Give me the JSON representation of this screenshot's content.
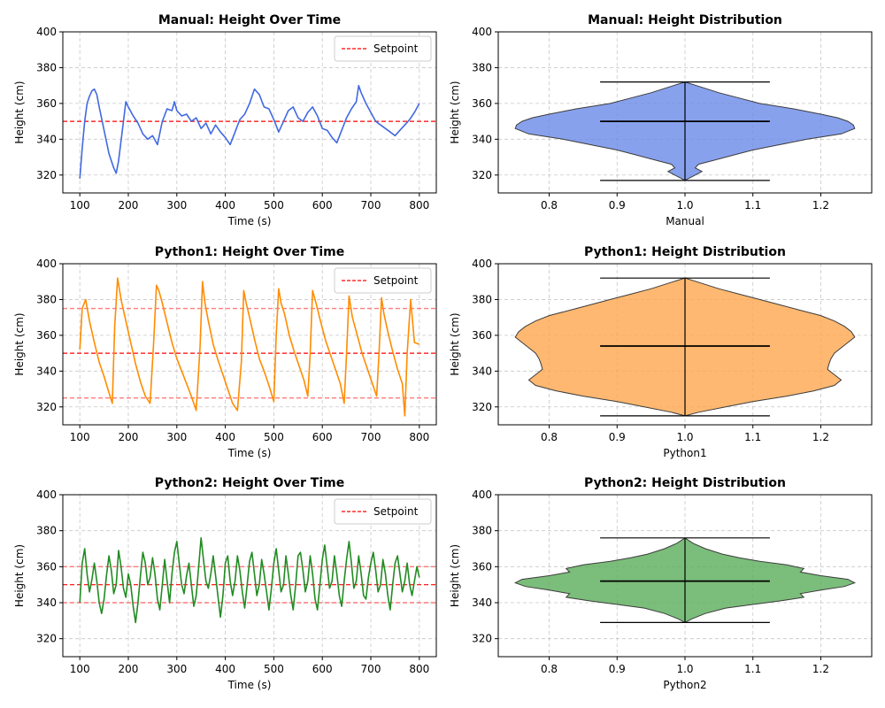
{
  "chart_data": [
    {
      "type": "line",
      "title": "Manual: Height Over Time",
      "xlabel": "Time (s)",
      "ylabel": "Height (cm)",
      "xlim": [
        65,
        835
      ],
      "ylim": [
        310,
        400
      ],
      "xticks": [
        100,
        200,
        300,
        400,
        500,
        600,
        700,
        800
      ],
      "yticks": [
        320,
        340,
        360,
        380,
        400
      ],
      "grid": true,
      "legend": {
        "position": "top-right",
        "entries": [
          "Setpoint"
        ]
      },
      "series": [
        {
          "color": "#4169e1",
          "x": [
            100,
            105,
            110,
            115,
            120,
            125,
            130,
            135,
            140,
            150,
            160,
            170,
            175,
            180,
            190,
            195,
            200,
            210,
            220,
            230,
            240,
            250,
            260,
            270,
            280,
            290,
            295,
            300,
            310,
            320,
            330,
            340,
            350,
            360,
            370,
            380,
            390,
            400,
            410,
            420,
            430,
            440,
            450,
            460,
            470,
            480,
            490,
            500,
            510,
            520,
            530,
            540,
            550,
            560,
            570,
            580,
            590,
            600,
            610,
            620,
            630,
            640,
            650,
            660,
            670,
            675,
            680,
            690,
            700,
            710,
            720,
            730,
            740,
            750,
            760,
            770,
            780,
            790,
            800
          ],
          "y": [
            318,
            335,
            350,
            360,
            364,
            367,
            368,
            365,
            358,
            345,
            332,
            324,
            321,
            328,
            350,
            361,
            358,
            353,
            349,
            343,
            340,
            342,
            337,
            350,
            357,
            356,
            361,
            356,
            353,
            354,
            350,
            352,
            346,
            349,
            343,
            348,
            344,
            341,
            337,
            344,
            351,
            354,
            360,
            368,
            365,
            358,
            357,
            351,
            344,
            350,
            356,
            358,
            352,
            350,
            355,
            358,
            353,
            346,
            345,
            341,
            338,
            345,
            352,
            357,
            361,
            370,
            366,
            360,
            355,
            350,
            348,
            346,
            344,
            342,
            345,
            348,
            351,
            355,
            360
          ]
        }
      ],
      "hlines": [
        {
          "y": 350,
          "color": "#ff0000",
          "style": "dashed",
          "label": "Setpoint"
        }
      ]
    },
    {
      "type": "violin",
      "title": "Manual: Height Distribution",
      "xlabel": "Manual",
      "ylabel": "Height (cm)",
      "xlim": [
        0.725,
        1.275
      ],
      "ylim": [
        310,
        400
      ],
      "xticks": [
        0.8,
        0.9,
        1.0,
        1.1,
        1.2
      ],
      "yticks": [
        320,
        340,
        360,
        380,
        400
      ],
      "grid": true,
      "position": 1.0,
      "color": "#6a89e8",
      "min": 317,
      "max": 372,
      "median": 350,
      "profile": [
        [
          317,
          0.0
        ],
        [
          320,
          0.015
        ],
        [
          322,
          0.025
        ],
        [
          324,
          0.015
        ],
        [
          326,
          0.02
        ],
        [
          328,
          0.04
        ],
        [
          331,
          0.07
        ],
        [
          334,
          0.1
        ],
        [
          337,
          0.14
        ],
        [
          340,
          0.18
        ],
        [
          343,
          0.23
        ],
        [
          346,
          0.25
        ],
        [
          348,
          0.248
        ],
        [
          350,
          0.24
        ],
        [
          352,
          0.225
        ],
        [
          354,
          0.2
        ],
        [
          357,
          0.16
        ],
        [
          360,
          0.11
        ],
        [
          363,
          0.08
        ],
        [
          366,
          0.05
        ],
        [
          369,
          0.025
        ],
        [
          372,
          0.0
        ]
      ]
    },
    {
      "type": "line",
      "title": "Python1: Height Over Time",
      "xlabel": "Time (s)",
      "ylabel": "Height (cm)",
      "xlim": [
        65,
        835
      ],
      "ylim": [
        310,
        400
      ],
      "xticks": [
        100,
        200,
        300,
        400,
        500,
        600,
        700,
        800
      ],
      "yticks": [
        320,
        340,
        360,
        380,
        400
      ],
      "grid": true,
      "legend": {
        "position": "top-right",
        "entries": [
          "Setpoint"
        ]
      },
      "series": [
        {
          "color": "#ff8c00",
          "x": [
            100,
            105,
            112,
            120,
            130,
            140,
            150,
            160,
            167,
            172,
            178,
            185,
            195,
            205,
            215,
            225,
            235,
            245,
            252,
            258,
            263,
            270,
            280,
            290,
            300,
            310,
            320,
            330,
            340,
            348,
            353,
            358,
            365,
            375,
            385,
            395,
            405,
            415,
            425,
            433,
            438,
            443,
            450,
            460,
            470,
            480,
            490,
            500,
            505,
            510,
            515,
            522,
            532,
            542,
            552,
            562,
            570,
            575,
            580,
            587,
            597,
            607,
            617,
            627,
            637,
            645,
            650,
            655,
            662,
            672,
            682,
            692,
            702,
            712,
            717,
            722,
            727,
            735,
            745,
            755,
            765,
            770,
            775,
            782,
            790,
            800
          ],
          "y": [
            352,
            375,
            380,
            368,
            356,
            345,
            337,
            328,
            322,
            365,
            392,
            380,
            368,
            356,
            344,
            334,
            326,
            322,
            355,
            388,
            385,
            378,
            367,
            356,
            347,
            340,
            333,
            326,
            318,
            354,
            390,
            378,
            368,
            355,
            346,
            338,
            330,
            322,
            318,
            345,
            385,
            378,
            370,
            358,
            347,
            340,
            332,
            323,
            360,
            386,
            378,
            372,
            360,
            351,
            343,
            335,
            326,
            350,
            385,
            378,
            367,
            357,
            349,
            341,
            333,
            322,
            350,
            382,
            370,
            360,
            350,
            342,
            334,
            326,
            350,
            381,
            372,
            362,
            351,
            341,
            333,
            315,
            350,
            380,
            356,
            355
          ]
        }
      ],
      "hlines": [
        {
          "y": 350,
          "color": "#ff0000",
          "style": "dashed",
          "label": "Setpoint"
        },
        {
          "y": 375,
          "color": "#ff6666",
          "style": "dashed"
        },
        {
          "y": 325,
          "color": "#ff6666",
          "style": "dashed"
        }
      ]
    },
    {
      "type": "violin",
      "title": "Python1: Height Distribution",
      "xlabel": "Python1",
      "ylabel": "Height (cm)",
      "xlim": [
        0.725,
        1.275
      ],
      "ylim": [
        310,
        400
      ],
      "xticks": [
        0.8,
        0.9,
        1.0,
        1.1,
        1.2
      ],
      "yticks": [
        320,
        340,
        360,
        380,
        400
      ],
      "grid": true,
      "position": 1.0,
      "color": "#ffa64d",
      "min": 315,
      "max": 392,
      "median": 354,
      "profile": [
        [
          315,
          0.0
        ],
        [
          317,
          0.02
        ],
        [
          320,
          0.06
        ],
        [
          323,
          0.1
        ],
        [
          326,
          0.15
        ],
        [
          329,
          0.19
        ],
        [
          332,
          0.22
        ],
        [
          335,
          0.23
        ],
        [
          338,
          0.22
        ],
        [
          341,
          0.21
        ],
        [
          344,
          0.212
        ],
        [
          347,
          0.215
        ],
        [
          350,
          0.22
        ],
        [
          353,
          0.23
        ],
        [
          356,
          0.24
        ],
        [
          359,
          0.25
        ],
        [
          362,
          0.245
        ],
        [
          365,
          0.235
        ],
        [
          368,
          0.22
        ],
        [
          371,
          0.2
        ],
        [
          374,
          0.17
        ],
        [
          377,
          0.14
        ],
        [
          380,
          0.11
        ],
        [
          383,
          0.08
        ],
        [
          386,
          0.05
        ],
        [
          389,
          0.025
        ],
        [
          392,
          0.0
        ]
      ]
    },
    {
      "type": "line",
      "title": "Python2: Height Over Time",
      "xlabel": "Time (s)",
      "ylabel": "Height (cm)",
      "xlim": [
        65,
        835
      ],
      "ylim": [
        310,
        400
      ],
      "xticks": [
        100,
        200,
        300,
        400,
        500,
        600,
        700,
        800
      ],
      "yticks": [
        320,
        340,
        360,
        380,
        400
      ],
      "grid": true,
      "legend": {
        "position": "top-right",
        "entries": [
          "Setpoint"
        ]
      },
      "series": [
        {
          "color": "#228b22",
          "x": [
            100,
            105,
            110,
            115,
            120,
            125,
            130,
            135,
            140,
            145,
            150,
            155,
            160,
            165,
            170,
            175,
            180,
            185,
            190,
            195,
            200,
            205,
            210,
            215,
            220,
            225,
            230,
            235,
            240,
            245,
            250,
            255,
            260,
            265,
            270,
            275,
            280,
            285,
            290,
            295,
            300,
            305,
            310,
            315,
            320,
            325,
            330,
            335,
            340,
            345,
            350,
            355,
            360,
            365,
            370,
            375,
            380,
            385,
            390,
            395,
            400,
            405,
            410,
            415,
            420,
            425,
            430,
            435,
            440,
            445,
            450,
            455,
            460,
            465,
            470,
            475,
            480,
            485,
            490,
            495,
            500,
            505,
            510,
            515,
            520,
            525,
            530,
            535,
            540,
            545,
            550,
            555,
            560,
            565,
            570,
            575,
            580,
            585,
            590,
            595,
            600,
            605,
            610,
            615,
            620,
            625,
            630,
            635,
            640,
            645,
            650,
            655,
            660,
            665,
            670,
            675,
            680,
            685,
            690,
            695,
            700,
            705,
            710,
            715,
            720,
            725,
            730,
            735,
            740,
            745,
            750,
            755,
            760,
            765,
            770,
            775,
            780,
            785,
            790,
            795,
            800
          ],
          "y": [
            340,
            362,
            370,
            356,
            346,
            353,
            362,
            352,
            340,
            334,
            342,
            355,
            366,
            358,
            345,
            350,
            369,
            360,
            348,
            343,
            356,
            350,
            338,
            329,
            340,
            355,
            368,
            362,
            350,
            354,
            365,
            356,
            342,
            336,
            350,
            364,
            352,
            340,
            356,
            368,
            374,
            362,
            350,
            345,
            355,
            362,
            350,
            338,
            344,
            360,
            376,
            364,
            352,
            348,
            356,
            366,
            355,
            343,
            332,
            344,
            362,
            366,
            352,
            344,
            352,
            366,
            358,
            346,
            337,
            350,
            363,
            368,
            356,
            344,
            350,
            364,
            356,
            346,
            336,
            348,
            362,
            370,
            358,
            346,
            350,
            366,
            356,
            344,
            336,
            350,
            366,
            368,
            358,
            346,
            352,
            366,
            356,
            342,
            336,
            350,
            364,
            372,
            360,
            348,
            352,
            366,
            356,
            344,
            338,
            352,
            364,
            374,
            362,
            348,
            352,
            366,
            356,
            344,
            342,
            354,
            362,
            368,
            358,
            346,
            350,
            364,
            356,
            344,
            336,
            350,
            362,
            366,
            356,
            346,
            352,
            362,
            350,
            344,
            352,
            360,
            354
          ]
        }
      ],
      "hlines": [
        {
          "y": 350,
          "color": "#ff0000",
          "style": "dashed",
          "label": "Setpoint"
        },
        {
          "y": 360,
          "color": "#ff6666",
          "style": "dashed"
        },
        {
          "y": 340,
          "color": "#ff6666",
          "style": "dashed"
        }
      ]
    },
    {
      "type": "violin",
      "title": "Python2: Height Distribution",
      "xlabel": "Python2",
      "ylabel": "Height (cm)",
      "xlim": [
        0.725,
        1.275
      ],
      "ylim": [
        310,
        400
      ],
      "xticks": [
        0.8,
        0.9,
        1.0,
        1.1,
        1.2
      ],
      "yticks": [
        320,
        340,
        360,
        380,
        400
      ],
      "grid": true,
      "position": 1.0,
      "color": "#5aad5a",
      "min": 329,
      "max": 376,
      "median": 352,
      "profile": [
        [
          329,
          0.0
        ],
        [
          331,
          0.01
        ],
        [
          334,
          0.03
        ],
        [
          337,
          0.06
        ],
        [
          339,
          0.1
        ],
        [
          341,
          0.14
        ],
        [
          343,
          0.175
        ],
        [
          345,
          0.17
        ],
        [
          347,
          0.2
        ],
        [
          349,
          0.235
        ],
        [
          351,
          0.25
        ],
        [
          353,
          0.24
        ],
        [
          355,
          0.2
        ],
        [
          357,
          0.17
        ],
        [
          359,
          0.175
        ],
        [
          361,
          0.15
        ],
        [
          363,
          0.11
        ],
        [
          365,
          0.08
        ],
        [
          367,
          0.055
        ],
        [
          370,
          0.03
        ],
        [
          373,
          0.012
        ],
        [
          376,
          0.0
        ]
      ]
    }
  ]
}
